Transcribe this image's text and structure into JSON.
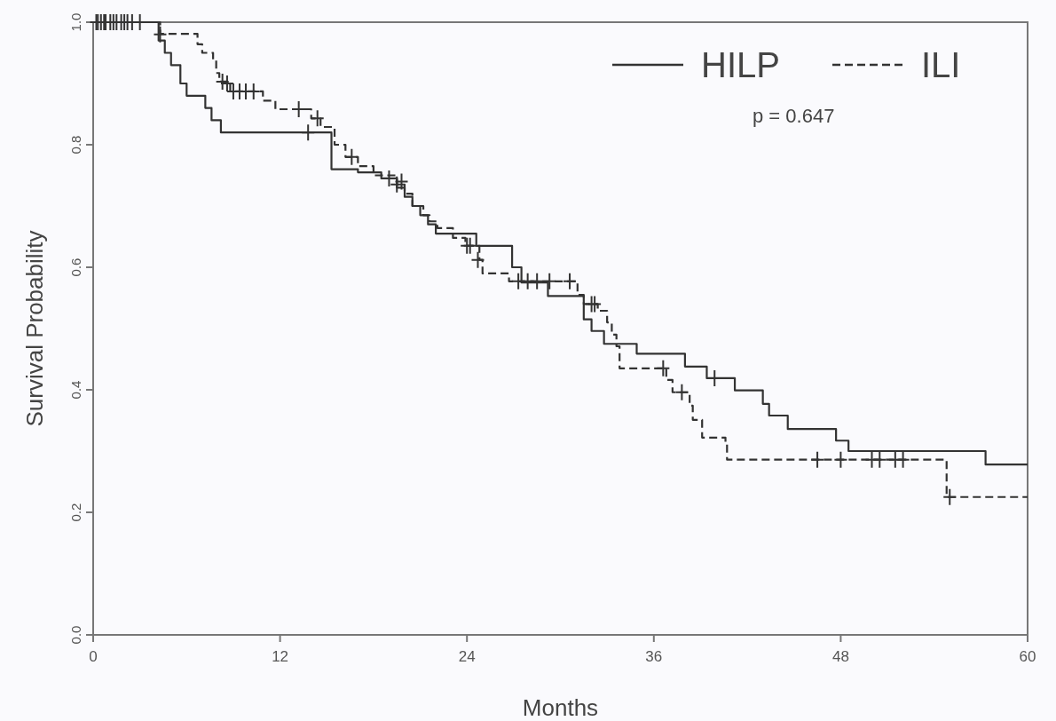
{
  "chart_data": {
    "type": "step",
    "xlabel": "Months",
    "ylabel": "Survival Probability",
    "xlim": [
      0,
      60
    ],
    "xticks": [
      0,
      12,
      24,
      36,
      48,
      60
    ],
    "ylim": [
      0,
      1
    ],
    "yticks": [
      {
        "value": 0,
        "label": "0.0"
      },
      0.2,
      0.4,
      0.6,
      0.8,
      {
        "value": 1,
        "label": "1.0"
      }
    ],
    "legend": "top right",
    "annotations": [
      "p = 0.647"
    ],
    "series": [
      {
        "name": "HILP",
        "color": "#333333",
        "line_style": "solid",
        "x": [
          0,
          4.2,
          4.6,
          5.0,
          5.6,
          6.0,
          7.2,
          7.6,
          8.2,
          15.3,
          17.0,
          18.5,
          19.5,
          20.0,
          20.5,
          21.0,
          21.5,
          22.0,
          24.6,
          26.9,
          27.5,
          29.2,
          31.5,
          32.0,
          32.8,
          34.9,
          38.0,
          39.4,
          41.2,
          43.0,
          43.4,
          44.6,
          47.7,
          48.5,
          57.3,
          60
        ],
        "values": [
          1.0,
          0.97,
          0.95,
          0.93,
          0.9,
          0.88,
          0.86,
          0.84,
          0.82,
          0.76,
          0.755,
          0.745,
          0.73,
          0.715,
          0.7,
          0.685,
          0.67,
          0.655,
          0.635,
          0.6,
          0.575,
          0.553,
          0.515,
          0.496,
          0.475,
          0.459,
          0.438,
          0.419,
          0.399,
          0.377,
          0.358,
          0.336,
          0.317,
          0.3,
          0.278,
          0.278
        ]
      },
      {
        "name": "ILI",
        "color": "#333333",
        "line_style": "dashed",
        "x": [
          0,
          4.3,
          6.7,
          7.0,
          7.7,
          7.9,
          8.1,
          8.8,
          10.9,
          11.7,
          14.0,
          14.6,
          15.5,
          16.2,
          17.0,
          18.0,
          19.5,
          20.0,
          20.5,
          21.2,
          21.6,
          22.1,
          23.1,
          23.9,
          24.8,
          25.0,
          26.7,
          31.1,
          31.5,
          32.4,
          33.0,
          33.3,
          33.6,
          33.8,
          36.8,
          37.2,
          38.3,
          38.5,
          39.1,
          40.6,
          40.7,
          54.8,
          60
        ],
        "values": [
          1.0,
          0.981,
          0.964,
          0.95,
          0.939,
          0.917,
          0.903,
          0.887,
          0.872,
          0.858,
          0.843,
          0.829,
          0.8,
          0.78,
          0.765,
          0.75,
          0.735,
          0.72,
          0.7,
          0.685,
          0.675,
          0.664,
          0.648,
          0.635,
          0.612,
          0.59,
          0.577,
          0.555,
          0.54,
          0.529,
          0.51,
          0.49,
          0.471,
          0.435,
          0.416,
          0.396,
          0.374,
          0.351,
          0.322,
          0.312,
          0.286,
          0.225,
          0.225
        ]
      },
      {
        "type": "scatter",
        "color": "#333333",
        "marker": "cross",
        "x": [
          0.2,
          0.5,
          0.8,
          1.1,
          1.5,
          2.0,
          2.5,
          4.3,
          13.8,
          19.8,
          24.0,
          32.0,
          39.9
        ],
        "values": [
          1.0,
          1.0,
          1.0,
          1.0,
          1.0,
          1.0,
          1.0,
          0.98,
          0.82,
          0.74,
          0.635,
          0.54,
          0.419
        ]
      },
      {
        "type": "scatter",
        "color": "#333333",
        "marker": "cross",
        "x": [
          0.3,
          0.7,
          1.3,
          1.8,
          2.2,
          3.0,
          8.3,
          8.6,
          9.0,
          9.4,
          9.8,
          10.3,
          13.2,
          14.4,
          16.6,
          19.0,
          19.5,
          24.2,
          24.7,
          27.3,
          27.9,
          28.5,
          29.3,
          30.6,
          32.2,
          36.6,
          37.8,
          46.5,
          48.0,
          50.0,
          50.5,
          51.5,
          52.0,
          55.0
        ],
        "values": [
          1.0,
          1.0,
          1.0,
          1.0,
          1.0,
          1.0,
          0.903,
          0.9,
          0.887,
          0.887,
          0.887,
          0.887,
          0.858,
          0.843,
          0.78,
          0.745,
          0.735,
          0.635,
          0.612,
          0.577,
          0.577,
          0.577,
          0.577,
          0.577,
          0.54,
          0.435,
          0.396,
          0.286,
          0.286,
          0.286,
          0.286,
          0.286,
          0.286,
          0.225
        ]
      }
    ]
  }
}
